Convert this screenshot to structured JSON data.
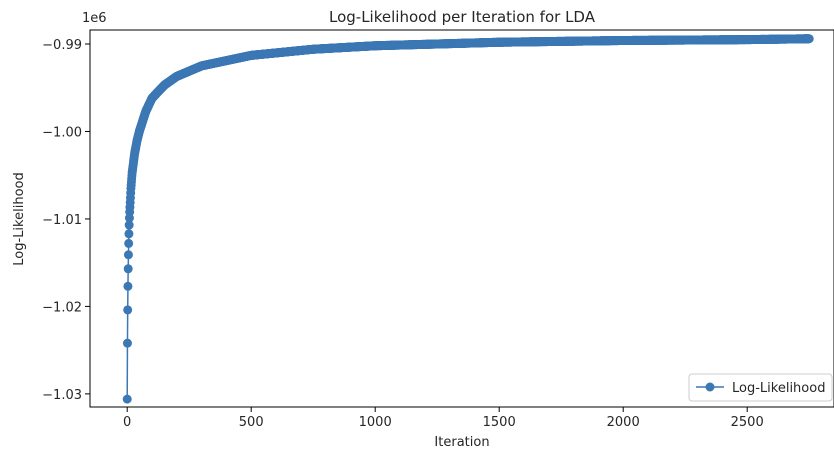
{
  "chart_data": {
    "type": "line",
    "title": "Log-Likelihood per Iteration for LDA",
    "xlabel": "Iteration",
    "ylabel": "Log-Likelihood",
    "y_offset_label": "1e6",
    "xlim": [
      -150,
      2850
    ],
    "ylim": [
      -1.0315,
      -0.9884
    ],
    "x_ticks": [
      0,
      500,
      1000,
      1500,
      2000,
      2500
    ],
    "x_tick_labels": [
      "0",
      "500",
      "1000",
      "1500",
      "2000",
      "2500"
    ],
    "y_ticks": [
      -1.03,
      -1.02,
      -1.01,
      -1.0,
      -0.99
    ],
    "y_tick_labels": [
      "−1.03",
      "−1.02",
      "−1.01",
      "−1.00",
      "−0.99"
    ],
    "grid": false,
    "legend_position": "bottom-right",
    "series": [
      {
        "name": "Log-Likelihood",
        "color": "#3c78b4",
        "marker": "circle",
        "x_first": 0,
        "x_last": 2750,
        "points": [
          [
            0,
            -1.0306
          ],
          [
            1,
            -1.0242
          ],
          [
            2,
            -1.0204
          ],
          [
            3,
            -1.0177
          ],
          [
            4,
            -1.0157
          ],
          [
            5,
            -1.0141
          ],
          [
            6,
            -1.0128
          ],
          [
            7,
            -1.0117
          ],
          [
            8,
            -1.0107
          ],
          [
            9,
            -1.0099
          ],
          [
            10,
            -1.0092
          ],
          [
            15,
            -1.0065
          ],
          [
            20,
            -1.0047
          ],
          [
            30,
            -1.0025
          ],
          [
            40,
            -1.001
          ],
          [
            50,
            -0.9999
          ],
          [
            75,
            -0.9977
          ],
          [
            100,
            -0.9962
          ],
          [
            150,
            -0.9947
          ],
          [
            200,
            -0.9937
          ],
          [
            300,
            -0.9925
          ],
          [
            500,
            -0.9913
          ],
          [
            750,
            -0.9906
          ],
          [
            1000,
            -0.9902
          ],
          [
            1500,
            -0.9898
          ],
          [
            2000,
            -0.9896
          ],
          [
            2500,
            -0.9895
          ],
          [
            2750,
            -0.9894
          ]
        ]
      }
    ]
  }
}
